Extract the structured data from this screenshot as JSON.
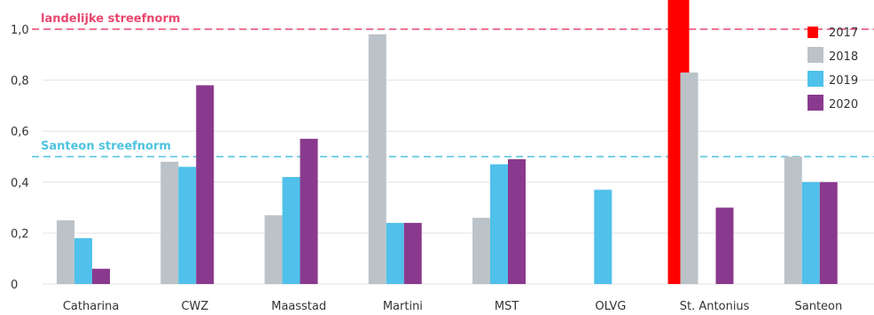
{
  "chart_data": {
    "type": "bar",
    "categories": [
      "Catharina",
      "CWZ",
      "Maasstad",
      "Martini",
      "MST",
      "OLVG",
      "St. Antonius",
      "Santeon"
    ],
    "series": [
      {
        "name": "2017",
        "values": [
          null,
          null,
          null,
          null,
          null,
          null,
          1.05,
          null
        ]
      },
      {
        "name": "2018",
        "values": [
          0.25,
          0.48,
          0.27,
          0.98,
          0.26,
          null,
          0.83,
          0.5
        ]
      },
      {
        "name": "2019",
        "values": [
          0.18,
          0.46,
          0.42,
          0.24,
          0.47,
          0.37,
          null,
          0.4
        ]
      },
      {
        "name": "2020",
        "values": [
          0.06,
          0.78,
          0.57,
          0.24,
          0.49,
          null,
          0.3,
          0.4
        ]
      }
    ],
    "ylim": [
      0,
      1.0
    ],
    "yticks": [
      {
        "value": 0,
        "label": "0"
      },
      {
        "value": 0.2,
        "label": "0,2"
      },
      {
        "value": 0.4,
        "label": "0,4"
      },
      {
        "value": 0.6,
        "label": "0,6"
      },
      {
        "value": 0.8,
        "label": "0,8"
      },
      {
        "value": 1.0,
        "label": "1,0"
      }
    ],
    "reference_lines": [
      {
        "label": "landelijke streefnorm",
        "value": 1.0,
        "color": "#e8476f"
      },
      {
        "label": "Santeon streefnorm",
        "value": 0.5,
        "color": "#4fc3df"
      }
    ],
    "grid": true,
    "legend_position": "top-right",
    "colors": {
      "2017": "#ff0000",
      "2018": "#bcc3c8",
      "2019": "#4fc1ea",
      "2020": "#8a3a8e"
    }
  }
}
